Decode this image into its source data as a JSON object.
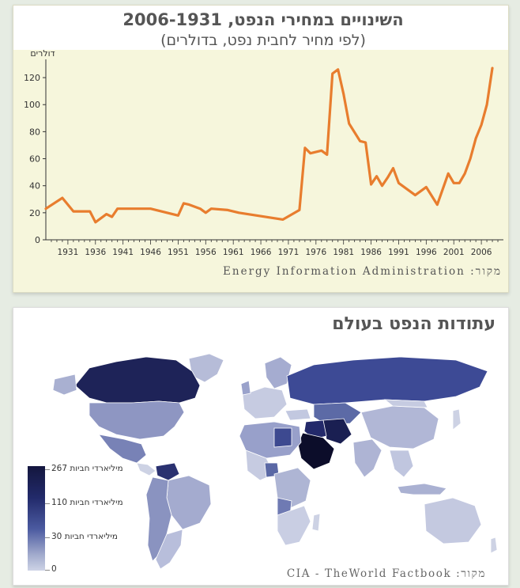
{
  "chart_data": [
    {
      "type": "line",
      "title": "השינויים במחירי הנפט, 2006-1931",
      "subtitle": "(לפי מחיר לחבית נפט, בדולרים)",
      "ylabel": "דולרים",
      "xlabel": "",
      "ylim": [
        0,
        130
      ],
      "xlim": [
        1927,
        2010
      ],
      "yticks": [
        0,
        20,
        40,
        60,
        80,
        100,
        120
      ],
      "xticks": [
        1931,
        1936,
        1941,
        1946,
        1951,
        1956,
        1961,
        1966,
        1971,
        1976,
        1981,
        1986,
        1991,
        1996,
        2001,
        2006
      ],
      "series": [
        {
          "name": "",
          "color": "#e87d2e",
          "x": [
            1927,
            1930,
            1932,
            1934,
            1935,
            1936,
            1938,
            1939,
            1940,
            1941,
            1946,
            1951,
            1952,
            1953,
            1955,
            1956,
            1957,
            1960,
            1962,
            1970,
            1973,
            1974,
            1975,
            1977,
            1978,
            1979,
            1980,
            1981,
            1982,
            1984,
            1985,
            1986,
            1987,
            1988,
            1989,
            1990,
            1991,
            1994,
            1996,
            1998,
            2000,
            2001,
            2002,
            2003,
            2004,
            2005,
            2006,
            2007,
            2008
          ],
          "values": [
            23,
            31,
            21,
            21,
            21,
            13,
            19,
            17,
            23,
            23,
            23,
            18,
            27,
            26,
            23,
            20,
            23,
            22,
            20,
            15,
            22,
            68,
            64,
            66,
            63,
            123,
            126,
            108,
            86,
            73,
            72,
            41,
            47,
            40,
            46,
            53,
            42,
            33,
            39,
            26,
            49,
            42,
            42,
            49,
            60,
            75,
            85,
            100,
            127
          ]
        }
      ]
    },
    {
      "type": "heatmap",
      "subtype": "choropleth-world-map",
      "title": "עתודות הנפט בעולם",
      "legend_labels": [
        "267 מיליארדי חביות",
        "110 מיליארדי חביות",
        "30 מיליארדי חביות",
        "0"
      ],
      "legend_values": [
        267,
        110,
        30,
        0
      ],
      "colors": [
        "#14163e",
        "#2b3778",
        "#5f6da8",
        "#aab1d0",
        "#cdd2e4"
      ]
    }
  ],
  "sources": {
    "top": "מקור: Energy Information Administration",
    "bottom": "מקור: CIA - TheWorld Factbook"
  }
}
